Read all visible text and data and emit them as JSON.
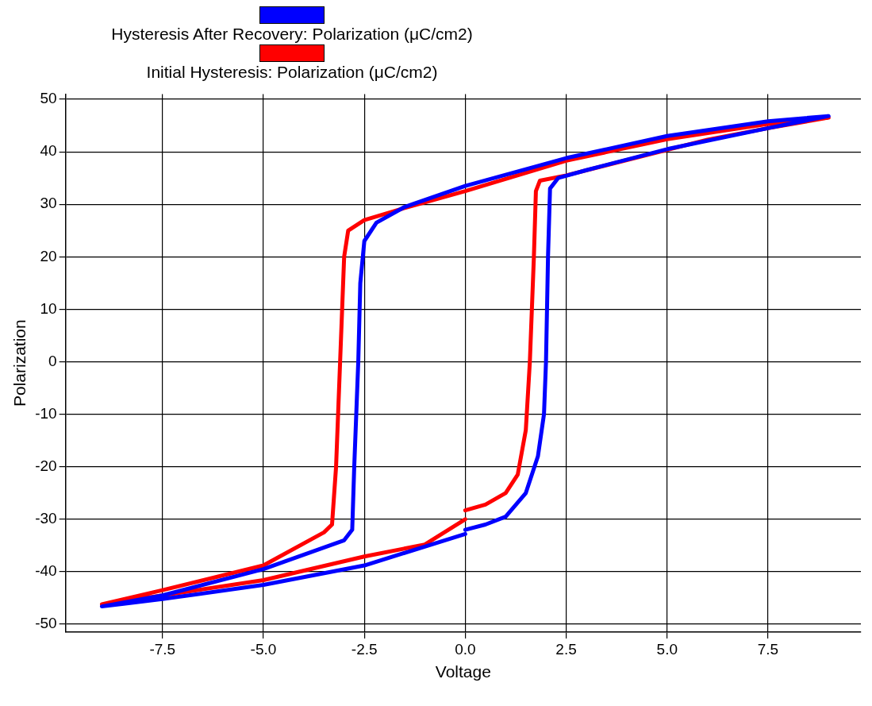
{
  "chart_data": {
    "type": "line",
    "xlabel": "Voltage",
    "ylabel": "Polarization",
    "legend": "top",
    "grid": true,
    "marker": "none",
    "line_style": "solid",
    "xlim": [
      -9.9,
      9.8
    ],
    "ylim": [
      -51.5,
      51
    ],
    "xticks": [
      -7.5,
      {
        "value": -5,
        "label": "-5.0"
      },
      -2.5,
      {
        "value": 0,
        "label": "0.0"
      },
      2.5,
      {
        "value": 5,
        "label": "5.0"
      },
      7.5
    ],
    "yticks": [
      -50,
      -40,
      -30,
      -20,
      -10,
      0,
      10,
      20,
      30,
      40,
      50
    ],
    "series": [
      {
        "name": "Hysteresis After Recovery: Polarization (μC/cm2)",
        "color": "#0000ff",
        "x": [
          0,
          0.5,
          1,
          1.5,
          1.8,
          1.95,
          2.0,
          2.05,
          2.1,
          2.3,
          3,
          5,
          7.5,
          9,
          7.5,
          5,
          2.5,
          0,
          -1.5,
          -2.2,
          -2.5,
          -2.6,
          -2.65,
          -2.75,
          -2.8,
          -3,
          -5,
          -7.5,
          -9,
          -7.5,
          -5,
          -2.5,
          0
        ],
        "values": [
          -32,
          -31,
          -29.5,
          -25,
          -18,
          -10,
          0,
          20,
          33,
          35,
          36.5,
          40.5,
          44.5,
          46.8,
          45.8,
          43,
          38.8,
          33.5,
          29.5,
          26.5,
          23,
          15,
          0,
          -20,
          -32,
          -34,
          -39.5,
          -44.5,
          -46.6,
          -45.2,
          -42.5,
          -38.8,
          -32.8
        ]
      },
      {
        "name": "Initial Hysteresis: Polarization (μC/cm2)",
        "color": "#ff0000",
        "x": [
          0,
          0.5,
          1,
          1.3,
          1.5,
          1.6,
          1.7,
          1.75,
          1.85,
          2.5,
          6,
          7.5,
          9,
          7.5,
          5,
          2.5,
          0,
          -1.5,
          -2.5,
          -2.9,
          -3,
          -3.1,
          -3.2,
          -3.3,
          -3.5,
          -5,
          -7.5,
          -9,
          -7.5,
          -5,
          -2.5,
          -1,
          0
        ],
        "values": [
          -28.3,
          -27.2,
          -25,
          -21.5,
          -13,
          0,
          20,
          32.5,
          34.5,
          35.5,
          42.3,
          44.5,
          46.5,
          45.3,
          42.4,
          38.3,
          32.5,
          29.3,
          27,
          25,
          20,
          0,
          -20,
          -31,
          -32.5,
          -38.8,
          -43.5,
          -46.2,
          -44.5,
          -41.6,
          -37.1,
          -34.8,
          -30
        ]
      }
    ]
  }
}
